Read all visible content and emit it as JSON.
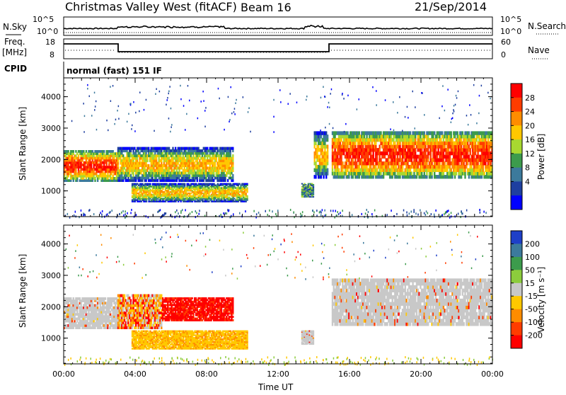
{
  "header": {
    "station": "Christmas Valley West (fitACF)",
    "beam": "Beam 16",
    "date": "21/Sep/2014"
  },
  "status_rows": {
    "nsky_label": "N.Sky",
    "nsky_ticks": [
      "10^5",
      "10^0"
    ],
    "nsearch_label": "N.Search",
    "nsearch_ticks": [
      "10^5",
      "10^0"
    ],
    "freq_label_1": "Freq.",
    "freq_label_2": "[MHz]",
    "freq_ticks": [
      "18",
      "8"
    ],
    "nave_label": "Nave",
    "nave_ticks": [
      "60",
      "0"
    ],
    "cpid_label": "CPID",
    "cpid_value": "normal (fast) 151 IF"
  },
  "chart_data": [
    {
      "type": "heatmap",
      "name": "power",
      "ylabel": "Slant Range [km]",
      "ylim": [
        180,
        4600
      ],
      "yticks": [
        1000,
        2000,
        3000,
        4000
      ],
      "xlim": [
        0,
        24
      ],
      "colorbar": {
        "label": "Power [dB]",
        "ticks": [
          "28",
          "24",
          "20",
          "16",
          "12",
          "8",
          "4"
        ],
        "colors": [
          "#ff0000",
          "#ff3c00",
          "#ff8c00",
          "#ffc800",
          "#a8d830",
          "#3c9b4c",
          "#3c7a9c",
          "#1e3fa0",
          "#0000ff"
        ]
      },
      "echo_bands": [
        {
          "t0": 0.0,
          "t1": 3.0,
          "r0": 1300,
          "r1": 2300,
          "level": "strong"
        },
        {
          "t0": 3.0,
          "t1": 9.5,
          "r0": 1300,
          "r1": 2400,
          "level": "medium"
        },
        {
          "t0": 3.8,
          "t1": 10.3,
          "r0": 650,
          "r1": 1250,
          "level": "medium"
        },
        {
          "t0": 13.3,
          "t1": 14.0,
          "r0": 800,
          "r1": 1250,
          "level": "weak"
        },
        {
          "t0": 14.0,
          "t1": 14.8,
          "r0": 1400,
          "r1": 2900,
          "level": "medium"
        },
        {
          "t0": 15.0,
          "t1": 24.0,
          "r0": 1400,
          "r1": 2900,
          "level": "strong"
        }
      ]
    },
    {
      "type": "heatmap",
      "name": "velocity",
      "ylabel": "Slant Range [km]",
      "ylim": [
        180,
        4600
      ],
      "yticks": [
        1000,
        2000,
        3000,
        4000
      ],
      "xlim": [
        0,
        24
      ],
      "xlabel": "Time UT",
      "xticks": [
        "00:00",
        "04:00",
        "08:00",
        "12:00",
        "16:00",
        "20:00",
        "00:00"
      ],
      "colorbar": {
        "label": "Velocity [m s⁻¹]",
        "ticks": [
          "200",
          "100",
          "50",
          "15",
          "-15",
          "-50",
          "-100",
          "-200"
        ],
        "colors": [
          "#1e3fc8",
          "#3c7a9c",
          "#3c9b4c",
          "#8ccc3c",
          "#c8c8c8",
          "#ffc800",
          "#ff8c00",
          "#ff3c00",
          "#ff0000"
        ]
      },
      "echo_bands": [
        {
          "t0": 0.0,
          "t1": 3.0,
          "r0": 1300,
          "r1": 2300,
          "level": "gray"
        },
        {
          "t0": 3.0,
          "t1": 5.5,
          "r0": 1300,
          "r1": 2400,
          "level": "mixed"
        },
        {
          "t0": 5.5,
          "t1": 9.5,
          "r0": 1550,
          "r1": 2300,
          "level": "red"
        },
        {
          "t0": 3.8,
          "t1": 10.3,
          "r0": 650,
          "r1": 1250,
          "level": "orange"
        },
        {
          "t0": 13.3,
          "t1": 14.0,
          "r0": 800,
          "r1": 1250,
          "level": "gray"
        },
        {
          "t0": 15.0,
          "t1": 24.0,
          "r0": 1400,
          "r1": 2900,
          "level": "gray"
        }
      ]
    }
  ]
}
